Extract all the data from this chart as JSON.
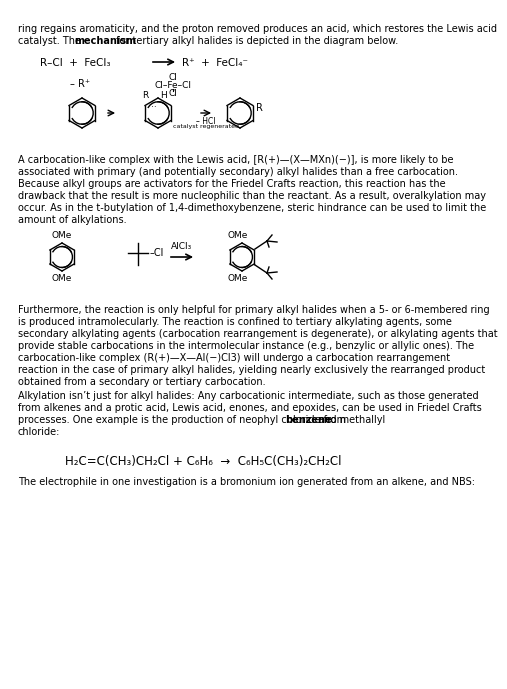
{
  "bg_color": "#ffffff",
  "text_color": "#000000",
  "font_size_body": 7.0,
  "font_size_eq": 8.5,
  "line1a": "ring regains aromaticity, and the proton removed produces an acid, which restores the Lewis acid",
  "line1b_pre": "catalyst. The ",
  "line1b_bold": "mechanism",
  "line1b_post": " for tertiary alkyl halides is depicted in the diagram below.",
  "para2_lines": [
    "A carbocation-like complex with the Lewis acid, [R(+)—(X—MXn)(−)], is more likely to be",
    "associated with primary (and potentially secondary) alkyl halides than a free carbocation.",
    "Because alkyl groups are activators for the Friedel Crafts reaction, this reaction has the",
    "drawback that the result is more nucleophilic than the reactant. As a result, overalkylation may",
    "occur. As in the t-butylation of 1,4-dimethoxybenzene, steric hindrance can be used to limit the",
    "amount of alkylations."
  ],
  "para3_lines": [
    "Furthermore, the reaction is only helpful for primary alkyl halides when a 5- or 6-membered ring",
    "is produced intramolecularly. The reaction is confined to tertiary alkylating agents, some",
    "secondary alkylating agents (carbocation rearrangement is degenerate), or alkylating agents that",
    "provide stable carbocations in the intermolecular instance (e.g., benzylic or allylic ones). The",
    "carbocation-like complex (R(+)—X—Al(−)Cl3) will undergo a carbocation rearrangement",
    "reaction in the case of primary alkyl halides, yielding nearly exclusively the rearranged product",
    "obtained from a secondary or tertiary carbocation."
  ],
  "para4_lines": [
    "Alkylation isn’t just for alkyl halides: Any carbocationic intermediate, such as those generated",
    "from alkenes and a protic acid, Lewis acid, enones, and epoxides, can be used in Friedel Crafts",
    "processes. One example is the production of neophyl chloride from benzene and methallyl",
    "chloride:"
  ],
  "para4_bold_word": "benzene",
  "para4_bold_line": 2,
  "eq_text": "H₂C=C(CH₃)CH₂Cl + C₆H₆  →  C₆H₅C(CH₃)₂CH₂Cl",
  "para5": "The electrophile in one investigation is a bromonium ion generated from an alkene, and NBS:"
}
